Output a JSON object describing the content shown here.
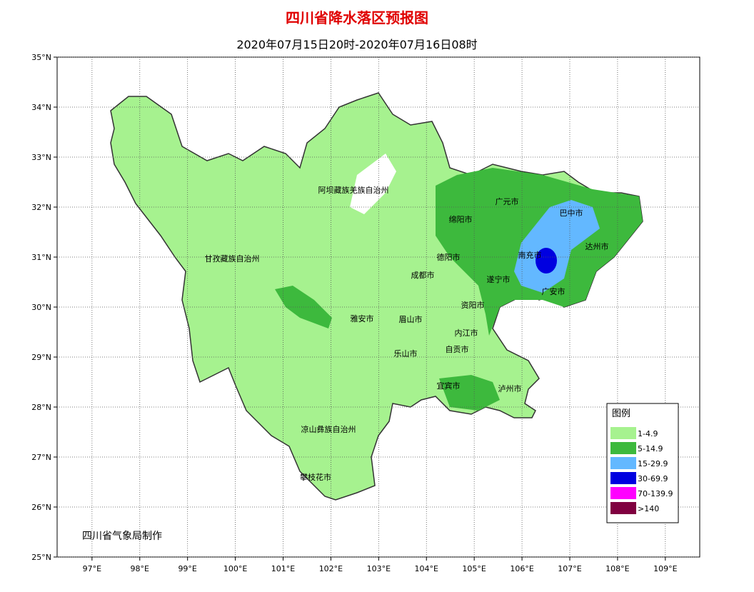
{
  "title": "四川省降水落区预报图",
  "subtitle": "2020年07月15日20时-2020年07月16日08时",
  "map": {
    "xlim": [
      96.27,
      109.72
    ],
    "ylim": [
      25,
      35
    ],
    "xticks": [
      {
        "value": 97,
        "label": "97°E"
      },
      {
        "value": 98,
        "label": "98°E"
      },
      {
        "value": 99,
        "label": "99°E"
      },
      {
        "value": 100,
        "label": "100°E"
      },
      {
        "value": 101,
        "label": "101°E"
      },
      {
        "value": 102,
        "label": "102°E"
      },
      {
        "value": 103,
        "label": "103°E"
      },
      {
        "value": 104,
        "label": "104°E"
      },
      {
        "value": 105,
        "label": "105°E"
      },
      {
        "value": 106,
        "label": "106°E"
      },
      {
        "value": 107,
        "label": "107°E"
      },
      {
        "value": 108,
        "label": "108°E"
      },
      {
        "value": 109,
        "label": "109°E"
      }
    ],
    "yticks": [
      {
        "value": 25,
        "label": "25°N"
      },
      {
        "value": 26,
        "label": "26°N"
      },
      {
        "value": 27,
        "label": "27°N"
      },
      {
        "value": 28,
        "label": "28°N"
      },
      {
        "value": 29,
        "label": "29°N"
      },
      {
        "value": 30,
        "label": "30°N"
      },
      {
        "value": 31,
        "label": "31°N"
      },
      {
        "value": 32,
        "label": "32°N"
      },
      {
        "value": 33,
        "label": "33°N"
      },
      {
        "value": 34,
        "label": "34°N"
      },
      {
        "value": 35,
        "label": "35°N"
      }
    ]
  },
  "places": [
    "阿坝藏族羌族自治州",
    "甘孜藏族自治州",
    "广元市",
    "巴中市",
    "绵阳市",
    "达州市",
    "南充市",
    "德阳市",
    "成都市",
    "遂宁市",
    "广安市",
    "资阳市",
    "雅安市",
    "眉山市",
    "内江市",
    "自贡市",
    "乐山市",
    "宜宾市",
    "泸州市",
    "凉山彝族自治州",
    "攀枝花市"
  ],
  "legend": {
    "title": "图例",
    "items": [
      {
        "label": "1-4.9",
        "color": "#a6f28f"
      },
      {
        "label": "5-14.9",
        "color": "#3db93d"
      },
      {
        "label": "15-29.9",
        "color": "#63b8ff"
      },
      {
        "label": "30-69.9",
        "color": "#0000e0"
      },
      {
        "label": "70-139.9",
        "color": "#ff00ff"
      },
      {
        "label": ">140",
        "color": "#800040"
      }
    ]
  },
  "credit": "四川省气象局制作"
}
